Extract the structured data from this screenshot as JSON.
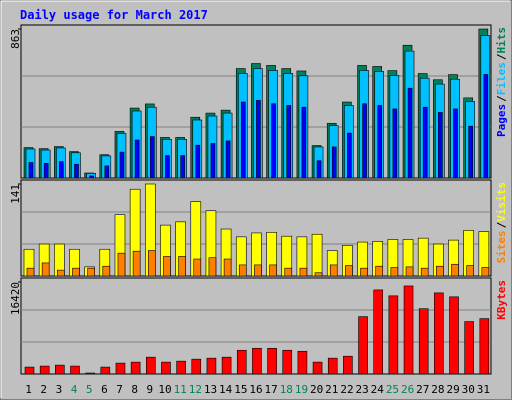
{
  "title": "Daily usage for March 2017",
  "legend_separator": "/",
  "chart_data": [
    {
      "type": "bar",
      "ylim": [
        0,
        863
      ],
      "yticks": [
        863
      ],
      "series": [
        {
          "name": "Hits",
          "color": "#00805c",
          "values": [
            176,
            170,
            182,
            153,
            29,
            135,
            270,
            405,
            429,
            235,
            235,
            352,
            376,
            393,
            634,
            663,
            652,
            634,
            620,
            188,
            317,
            440,
            652,
            646,
            622,
            769,
            605,
            569,
            599,
            464,
            863
          ]
        },
        {
          "name": "Files",
          "color": "#00c0ff",
          "values": [
            168,
            162,
            174,
            146,
            27,
            128,
            258,
            388,
            410,
            224,
            224,
            336,
            359,
            376,
            606,
            634,
            623,
            606,
            592,
            180,
            303,
            420,
            623,
            617,
            594,
            735,
            578,
            544,
            572,
            443,
            825
          ]
        },
        {
          "name": "Pages",
          "color": "#0000ff",
          "values": [
            90,
            85,
            95,
            80,
            12,
            70,
            150,
            220,
            240,
            130,
            130,
            190,
            200,
            215,
            440,
            450,
            430,
            420,
            410,
            100,
            180,
            260,
            430,
            420,
            400,
            520,
            410,
            380,
            400,
            300,
            600
          ]
        }
      ]
    },
    {
      "type": "bar",
      "ylim": [
        0,
        141
      ],
      "yticks": [
        141
      ],
      "series": [
        {
          "name": "Visits",
          "color": "#ffff00",
          "values": [
            41,
            49,
            49,
            41,
            14,
            41,
            94,
            133,
            141,
            78,
            83,
            114,
            100,
            72,
            60,
            66,
            67,
            61,
            60,
            64,
            39,
            47,
            52,
            53,
            56,
            56,
            58,
            49,
            55,
            70,
            68
          ]
        },
        {
          "name": "Sites",
          "color": "#ff8000",
          "values": [
            12,
            20,
            9,
            12,
            12,
            15,
            35,
            38,
            39,
            30,
            30,
            26,
            28,
            26,
            17,
            17,
            17,
            12,
            12,
            5,
            17,
            16,
            12,
            15,
            13,
            14,
            12,
            15,
            18,
            16,
            13
          ]
        }
      ]
    },
    {
      "type": "bar",
      "ylim": [
        0,
        16420
      ],
      "yticks": [
        16420
      ],
      "categories": [
        1,
        2,
        3,
        4,
        5,
        6,
        7,
        8,
        9,
        10,
        11,
        12,
        13,
        14,
        15,
        16,
        17,
        18,
        19,
        20,
        21,
        22,
        23,
        24,
        25,
        26,
        27,
        28,
        29,
        30,
        31
      ],
      "highlight_categories": [
        4,
        5,
        11,
        12,
        18,
        19,
        25,
        26
      ],
      "highlight_color": "#00805c",
      "series": [
        {
          "name": "KBytes",
          "color": "#ff0000",
          "values": [
            1236,
            1413,
            1589,
            1413,
            177,
            1236,
            1942,
            2119,
            3002,
            2119,
            2295,
            2648,
            2825,
            3002,
            4237,
            4590,
            4590,
            4237,
            4061,
            2119,
            2825,
            3178,
            10240,
            15007,
            13948,
            15714,
            11654,
            14478,
            13772,
            9357,
            9887
          ]
        }
      ]
    }
  ]
}
